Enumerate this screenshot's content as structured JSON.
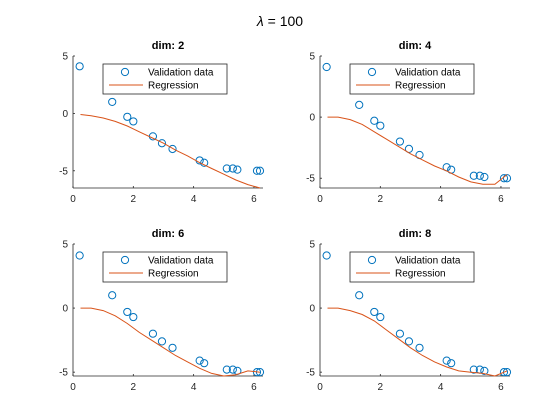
{
  "figure_title": {
    "symbol": "λ",
    "text": " = 100"
  },
  "chart_data": [
    {
      "type": "scatter",
      "title": "dim: 2",
      "xlabel": "",
      "ylabel": "",
      "xlim": [
        0,
        6.3
      ],
      "ylim": [
        -6.5,
        5
      ],
      "xticks": [
        0,
        2,
        4,
        6
      ],
      "yticks": [
        -5,
        0,
        5
      ],
      "legend": {
        "placement": "top-right",
        "entries": [
          "Validation data",
          "Regression"
        ]
      },
      "series": [
        {
          "name": "Validation data",
          "kind": "scatter",
          "color": "#0072BD",
          "x": [
            0.22,
            1.3,
            1.8,
            2.0,
            2.65,
            2.95,
            3.3,
            4.2,
            4.35,
            5.1,
            5.3,
            5.45,
            6.1,
            6.2
          ],
          "y": [
            4.1,
            1.0,
            -0.3,
            -0.7,
            -2.0,
            -2.6,
            -3.1,
            -4.1,
            -4.3,
            -4.8,
            -4.8,
            -4.9,
            -5.0,
            -5.0
          ]
        },
        {
          "name": "Regression",
          "kind": "line",
          "color": "#D95319",
          "x": [
            0.25,
            0.6,
            1.0,
            1.4,
            1.8,
            2.2,
            2.6,
            3.0,
            3.4,
            3.8,
            4.2,
            4.6,
            5.0,
            5.4,
            5.8,
            6.2
          ],
          "y": [
            -0.1,
            -0.2,
            -0.4,
            -0.7,
            -1.1,
            -1.6,
            -2.1,
            -2.6,
            -3.2,
            -3.7,
            -4.3,
            -4.8,
            -5.3,
            -5.8,
            -6.2,
            -6.6
          ]
        }
      ]
    },
    {
      "type": "scatter",
      "title": "dim: 4",
      "xlabel": "",
      "ylabel": "",
      "xlim": [
        0,
        6.3
      ],
      "ylim": [
        -5.8,
        5
      ],
      "xticks": [
        0,
        2,
        4,
        6
      ],
      "yticks": [
        -5,
        0,
        5
      ],
      "legend": {
        "placement": "top-right",
        "entries": [
          "Validation data",
          "Regression"
        ]
      },
      "series": [
        {
          "name": "Validation data",
          "kind": "scatter",
          "color": "#0072BD",
          "x": [
            0.22,
            1.3,
            1.8,
            2.0,
            2.65,
            2.95,
            3.3,
            4.2,
            4.35,
            5.1,
            5.3,
            5.45,
            6.1,
            6.2
          ],
          "y": [
            4.1,
            1.0,
            -0.3,
            -0.7,
            -2.0,
            -2.6,
            -3.1,
            -4.1,
            -4.3,
            -4.8,
            -4.8,
            -4.9,
            -5.0,
            -5.0
          ]
        },
        {
          "name": "Regression",
          "kind": "line",
          "color": "#D95319",
          "x": [
            0.25,
            0.6,
            1.0,
            1.4,
            1.8,
            2.2,
            2.6,
            3.0,
            3.4,
            3.8,
            4.2,
            4.6,
            5.0,
            5.4,
            5.8,
            6.2
          ],
          "y": [
            0.0,
            0.0,
            -0.2,
            -0.6,
            -1.2,
            -1.8,
            -2.4,
            -3.0,
            -3.5,
            -4.0,
            -4.4,
            -4.9,
            -5.3,
            -5.5,
            -5.5,
            -4.7
          ]
        }
      ]
    },
    {
      "type": "scatter",
      "title": "dim: 6",
      "xlabel": "",
      "ylabel": "",
      "xlim": [
        0,
        6.3
      ],
      "ylim": [
        -5.3,
        5
      ],
      "xticks": [
        0,
        2,
        4,
        6
      ],
      "yticks": [
        -5,
        0,
        5
      ],
      "legend": {
        "placement": "top-right",
        "entries": [
          "Validation data",
          "Regression"
        ]
      },
      "series": [
        {
          "name": "Validation data",
          "kind": "scatter",
          "color": "#0072BD",
          "x": [
            0.22,
            1.3,
            1.8,
            2.0,
            2.65,
            2.95,
            3.3,
            4.2,
            4.35,
            5.1,
            5.3,
            5.45,
            6.1,
            6.2
          ],
          "y": [
            4.1,
            1.0,
            -0.3,
            -0.7,
            -2.0,
            -2.6,
            -3.1,
            -4.1,
            -4.3,
            -4.8,
            -4.8,
            -4.9,
            -5.0,
            -5.0
          ]
        },
        {
          "name": "Regression",
          "kind": "line",
          "color": "#D95319",
          "x": [
            0.25,
            0.6,
            1.0,
            1.4,
            1.8,
            2.2,
            2.6,
            3.0,
            3.4,
            3.8,
            4.2,
            4.6,
            5.0,
            5.4,
            5.8,
            6.2
          ],
          "y": [
            0.0,
            0.0,
            -0.2,
            -0.6,
            -1.2,
            -1.9,
            -2.5,
            -3.1,
            -3.7,
            -4.2,
            -4.7,
            -5.1,
            -5.3,
            -5.2,
            -4.9,
            -5.0
          ]
        }
      ]
    },
    {
      "type": "scatter",
      "title": "dim: 8",
      "xlabel": "",
      "ylabel": "",
      "xlim": [
        0,
        6.3
      ],
      "ylim": [
        -5.3,
        5
      ],
      "xticks": [
        0,
        2,
        4,
        6
      ],
      "yticks": [
        -5,
        0,
        5
      ],
      "legend": {
        "placement": "top-right",
        "entries": [
          "Validation data",
          "Regression"
        ]
      },
      "series": [
        {
          "name": "Validation data",
          "kind": "scatter",
          "color": "#0072BD",
          "x": [
            0.22,
            1.3,
            1.8,
            2.0,
            2.65,
            2.95,
            3.3,
            4.2,
            4.35,
            5.1,
            5.3,
            5.45,
            6.1,
            6.2
          ],
          "y": [
            4.1,
            1.0,
            -0.3,
            -0.7,
            -2.0,
            -2.6,
            -3.1,
            -4.1,
            -4.3,
            -4.8,
            -4.8,
            -4.9,
            -5.0,
            -5.0
          ]
        },
        {
          "name": "Regression",
          "kind": "line",
          "color": "#D95319",
          "x": [
            0.25,
            0.6,
            1.0,
            1.4,
            1.8,
            2.2,
            2.6,
            3.0,
            3.4,
            3.8,
            4.2,
            4.6,
            5.0,
            5.4,
            5.8,
            6.2
          ],
          "y": [
            0.0,
            0.0,
            -0.2,
            -0.5,
            -1.0,
            -1.7,
            -2.4,
            -3.1,
            -3.7,
            -4.2,
            -4.6,
            -4.9,
            -5.0,
            -5.1,
            -5.3,
            -4.9
          ]
        }
      ]
    }
  ]
}
